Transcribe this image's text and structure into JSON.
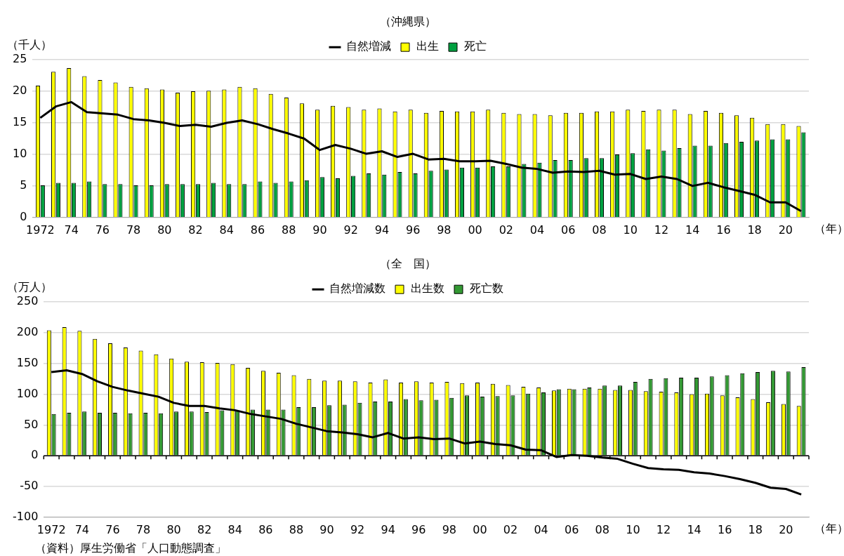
{
  "chart_data": [
    {
      "type": "bar",
      "title": "（沖縄県）",
      "ylabel": "（千人）",
      "xlabel": "（年）",
      "categories": [
        "1972",
        null,
        "74",
        null,
        "76",
        null,
        "78",
        null,
        "80",
        null,
        "82",
        null,
        "84",
        null,
        "86",
        null,
        "88",
        null,
        "90",
        null,
        "92",
        null,
        "94",
        null,
        "96",
        null,
        "98",
        null,
        "00",
        null,
        "02",
        null,
        "04",
        null,
        "06",
        null,
        "08",
        null,
        "10",
        null,
        "12",
        null,
        "14",
        null,
        "16",
        null,
        "18",
        null,
        "20",
        null
      ],
      "series": [
        {
          "name": "出生",
          "color": "#ffff00",
          "values": [
            20.9,
            23.1,
            23.7,
            22.4,
            21.8,
            21.4,
            20.7,
            20.5,
            20.3,
            19.8,
            20.0,
            20.1,
            20.3,
            20.7,
            20.5,
            19.6,
            19.0,
            18.1,
            17.1,
            17.7,
            17.5,
            17.1,
            17.3,
            16.8,
            17.1,
            16.6,
            16.9,
            16.8,
            16.8,
            17.1,
            16.6,
            16.4,
            16.4,
            16.2,
            16.6,
            16.6,
            16.8,
            16.8,
            17.1,
            16.9,
            17.1,
            17.1,
            16.4,
            16.9,
            16.6,
            16.2,
            15.8,
            14.8,
            14.8,
            14.5
          ]
        },
        {
          "name": "死亡",
          "color": "#00a040",
          "values": [
            5.1,
            5.5,
            5.5,
            5.7,
            5.3,
            5.3,
            5.1,
            5.1,
            5.3,
            5.3,
            5.3,
            5.5,
            5.3,
            5.3,
            5.7,
            5.5,
            5.7,
            5.9,
            6.4,
            6.2,
            6.6,
            7.0,
            6.8,
            7.2,
            7.0,
            7.4,
            7.6,
            7.9,
            7.9,
            8.1,
            8.1,
            8.5,
            8.7,
            9.1,
            9.1,
            9.4,
            9.4,
            10.0,
            10.2,
            10.8,
            10.6,
            11.0,
            11.4,
            11.4,
            11.8,
            12.0,
            12.2,
            12.4,
            12.4,
            13.5
          ]
        },
        {
          "name": "自然増減",
          "type": "line",
          "color": "#000000",
          "values": [
            15.8,
            17.6,
            18.3,
            16.7,
            16.5,
            16.3,
            15.6,
            15.4,
            15.0,
            14.5,
            14.7,
            14.4,
            15.0,
            15.4,
            14.8,
            14.0,
            13.3,
            12.5,
            10.7,
            11.5,
            10.9,
            10.1,
            10.5,
            9.6,
            10.1,
            9.2,
            9.3,
            8.9,
            8.9,
            9.0,
            8.5,
            7.9,
            7.7,
            7.1,
            7.3,
            7.2,
            7.4,
            6.8,
            6.9,
            6.1,
            6.5,
            6.1,
            5.0,
            5.5,
            4.8,
            4.2,
            3.6,
            2.4,
            2.4,
            1.0
          ]
        }
      ],
      "ylim": [
        0,
        25
      ],
      "yticks": [
        0,
        5,
        10,
        15,
        20,
        25
      ],
      "grid": "y",
      "legend": "top"
    },
    {
      "type": "bar",
      "title": "（全　国）",
      "ylabel": "（万人）",
      "xlabel": "（年）",
      "annotations": [
        "（資料）厚生労働省「人口動態調査」"
      ],
      "categories": [
        "1972",
        null,
        "74",
        null,
        "76",
        null,
        "78",
        null,
        "80",
        null,
        "82",
        null,
        "84",
        null,
        "86",
        null,
        "88",
        null,
        "90",
        null,
        "92",
        null,
        "94",
        null,
        "96",
        null,
        "98",
        null,
        "00",
        null,
        "02",
        null,
        "04",
        null,
        "06",
        null,
        "08",
        null,
        "10",
        null,
        "12",
        null,
        "14",
        null,
        "16",
        null,
        "18",
        null,
        "20",
        null
      ],
      "series": [
        {
          "name": "出生数",
          "color": "#ffff00",
          "values": [
            204,
            209,
            203,
            190,
            183,
            176,
            171,
            165,
            158,
            153,
            152,
            151,
            149,
            143,
            138,
            135,
            131,
            125,
            122,
            122,
            121,
            119,
            124,
            119,
            121,
            119,
            120,
            118,
            119,
            117,
            115,
            112,
            111,
            106,
            109,
            109,
            109,
            107,
            107,
            105,
            104,
            103,
            100,
            101,
            98,
            95,
            92,
            87,
            84,
            81
          ]
        },
        {
          "name": "死亡数",
          "color": "#339933",
          "values": [
            68,
            70,
            72,
            70,
            70,
            69,
            70,
            69,
            72,
            72,
            71,
            74,
            74,
            75,
            75,
            75,
            79,
            79,
            82,
            83,
            86,
            88,
            88,
            92,
            90,
            91,
            94,
            98,
            96,
            97,
            98,
            101,
            103,
            108,
            108,
            111,
            114,
            114,
            120,
            125,
            126,
            127,
            127,
            129,
            131,
            134,
            136,
            138,
            137,
            144
          ]
        },
        {
          "name": "自然増減数",
          "type": "line",
          "color": "#000000",
          "values": [
            136,
            139,
            133,
            121,
            112,
            106,
            101,
            96,
            86,
            81,
            81,
            77,
            74,
            68,
            64,
            60,
            52,
            46,
            40,
            38,
            35,
            30,
            37,
            28,
            30,
            27,
            28,
            20,
            23,
            19,
            17,
            10,
            9,
            -2,
            1,
            0,
            -3,
            -5,
            -13,
            -20,
            -22,
            -23,
            -27,
            -29,
            -33,
            -38,
            -44,
            -52,
            -54,
            -63
          ]
        }
      ],
      "ylim": [
        -100,
        250
      ],
      "yticks": [
        -100,
        -50,
        0,
        50,
        100,
        150,
        200,
        250
      ],
      "grid": "y",
      "legend": "top"
    }
  ]
}
